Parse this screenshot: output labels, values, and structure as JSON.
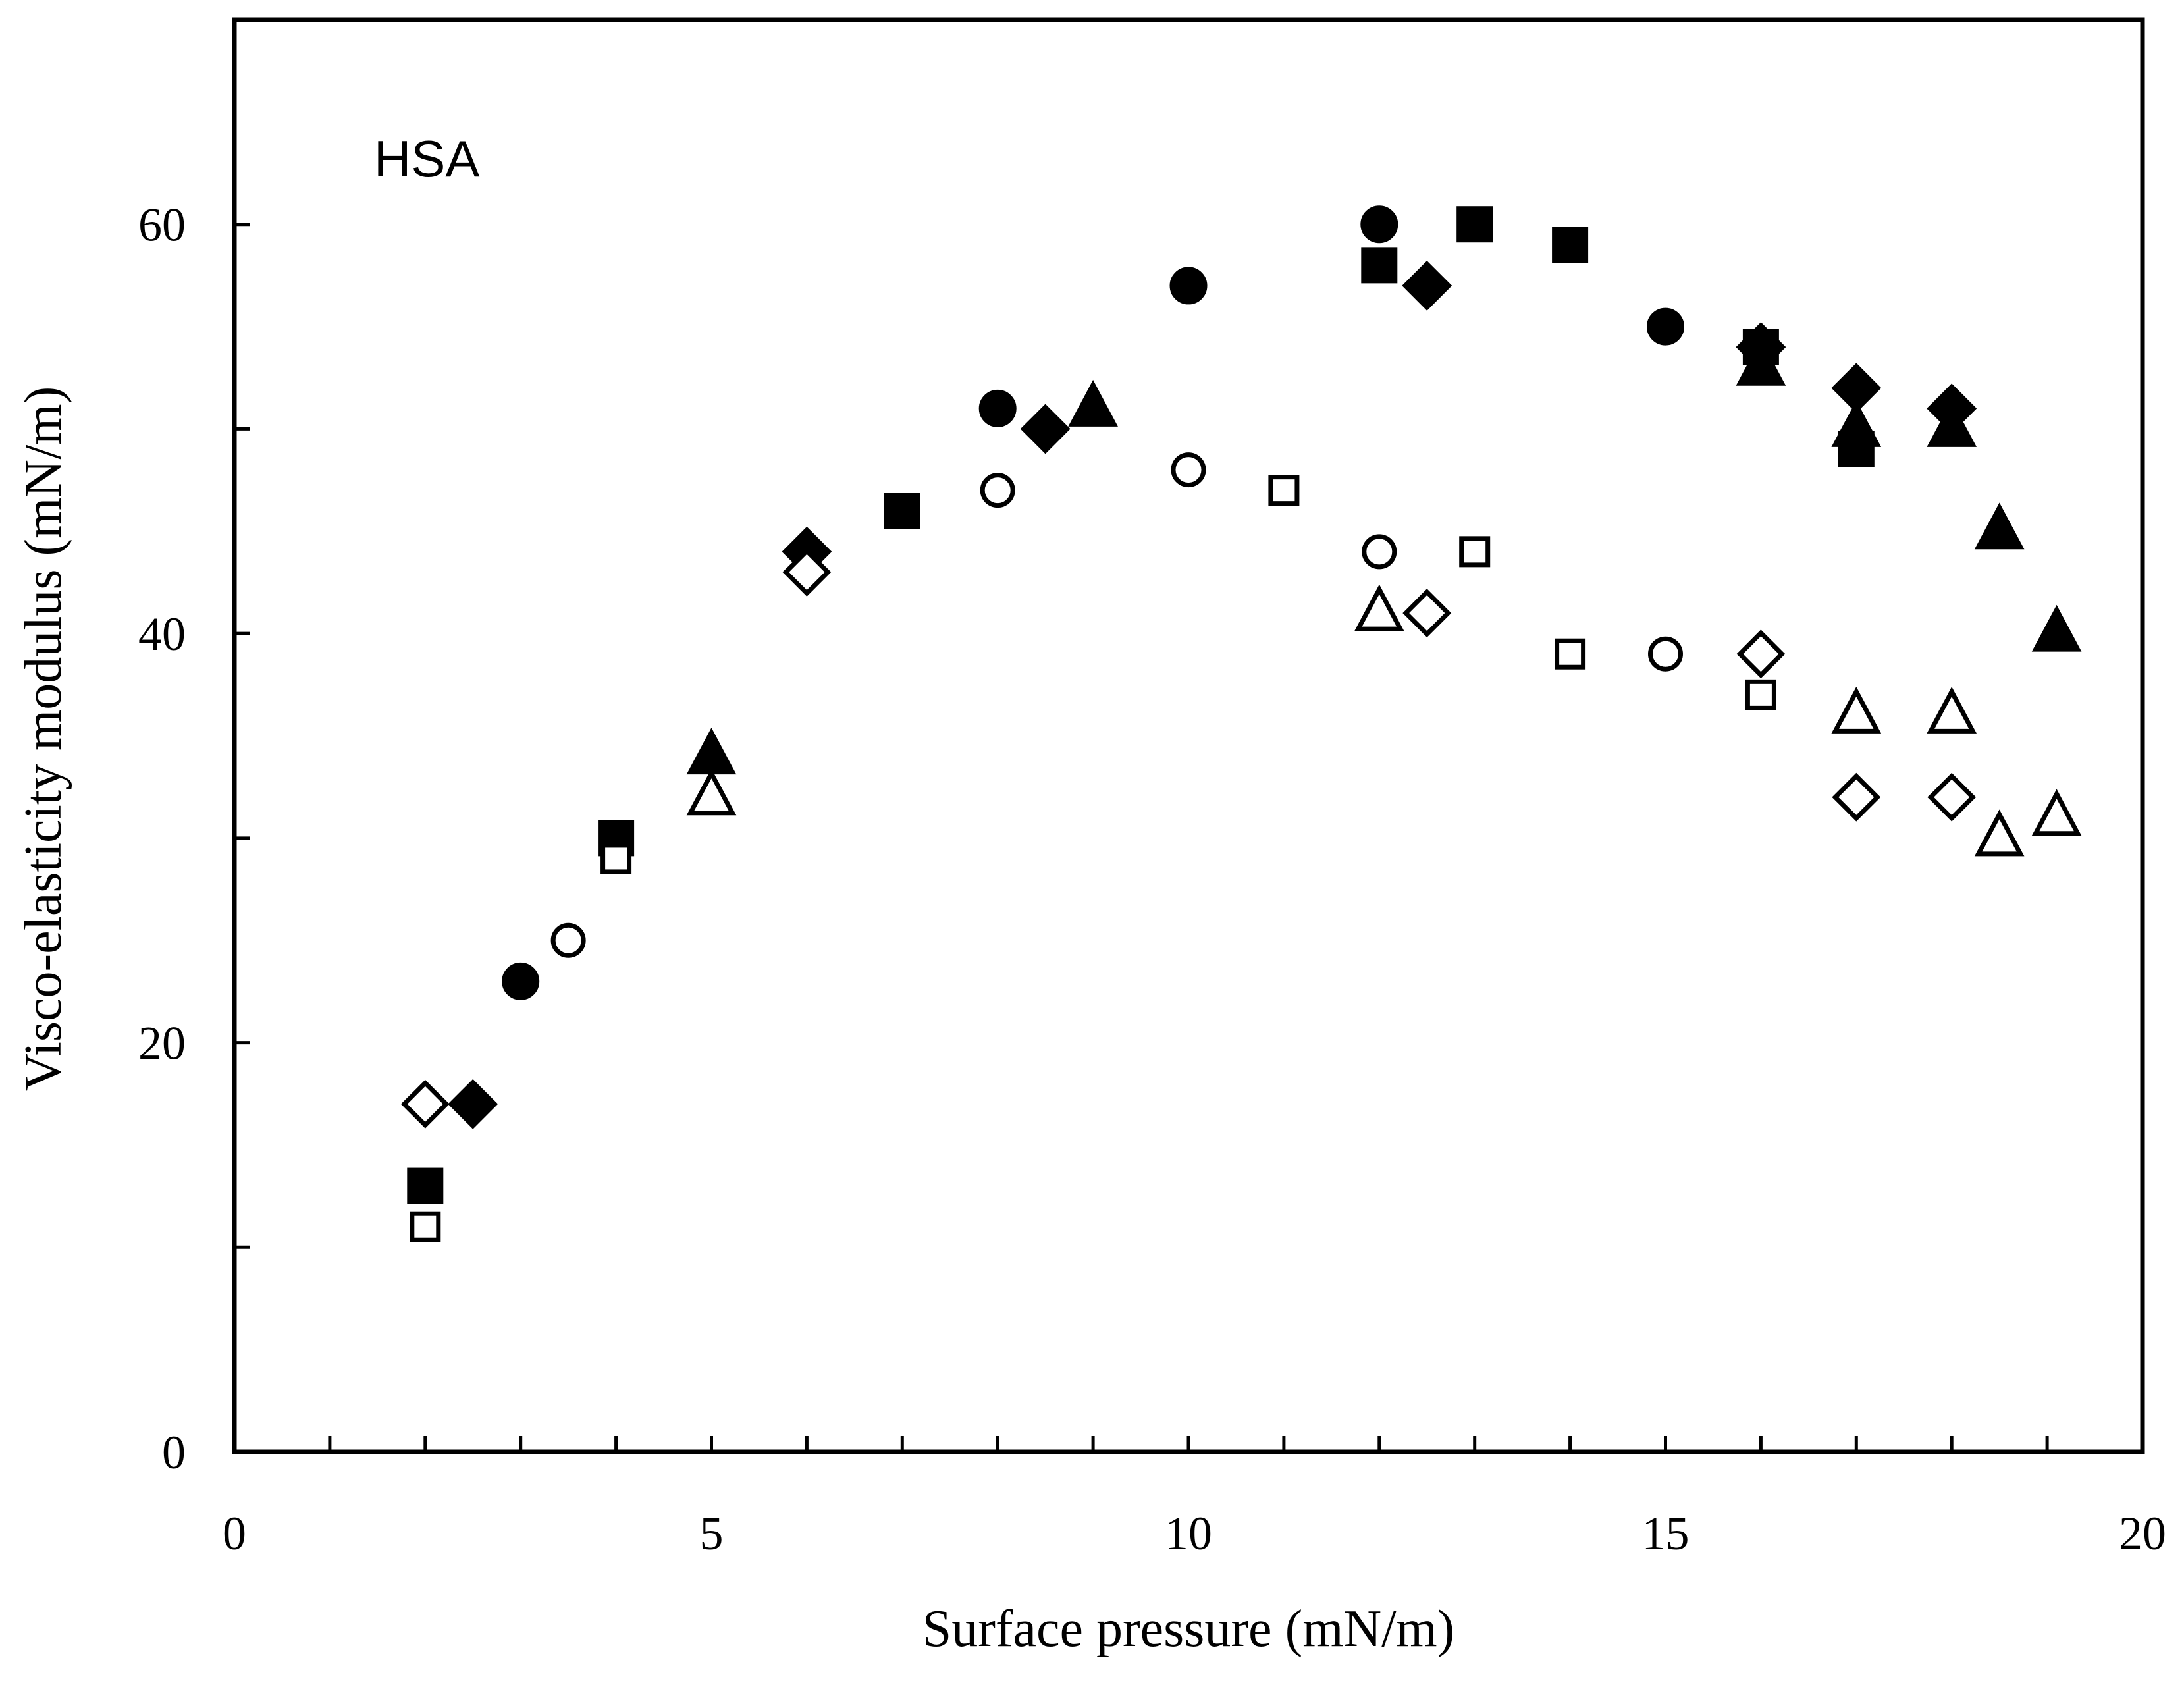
{
  "chart_data": {
    "type": "scatter",
    "title": "",
    "annotation": "HSA",
    "xlabel": "Surface pressure (mN/m)",
    "ylabel": "Visco-elasticity modulus (mN/m)",
    "xlim": [
      0,
      20
    ],
    "ylim": [
      0,
      70
    ],
    "x_ticks_major": [
      0,
      5,
      10,
      15,
      20
    ],
    "x_tick_labels": [
      "0",
      "5",
      "10",
      "15",
      "20"
    ],
    "x_ticks_minor": [
      1,
      2,
      3,
      4,
      6,
      7,
      8,
      9,
      11,
      12,
      13,
      14,
      16,
      17,
      18,
      19
    ],
    "y_ticks_major": [
      0,
      20,
      40,
      60
    ],
    "y_tick_labels": [
      "0",
      "20",
      "40",
      "60"
    ],
    "y_ticks_minor": [
      10,
      30,
      50
    ],
    "grid": false,
    "series": [
      {
        "name": "filled-circle",
        "marker": "circle",
        "filled": true,
        "points": [
          [
            3,
            23
          ],
          [
            8,
            51
          ],
          [
            10,
            57
          ],
          [
            12,
            60
          ],
          [
            15,
            55
          ]
        ]
      },
      {
        "name": "filled-square",
        "marker": "square",
        "filled": true,
        "points": [
          [
            2,
            13
          ],
          [
            4,
            30
          ],
          [
            7,
            46
          ],
          [
            12,
            58
          ],
          [
            13,
            60
          ],
          [
            14,
            59
          ],
          [
            16,
            54
          ],
          [
            17,
            49
          ]
        ]
      },
      {
        "name": "filled-diamond",
        "marker": "diamond",
        "filled": true,
        "points": [
          [
            2.5,
            17
          ],
          [
            6,
            44
          ],
          [
            8.5,
            50
          ],
          [
            12.5,
            57
          ],
          [
            16,
            54
          ],
          [
            17,
            52
          ],
          [
            18,
            51
          ]
        ]
      },
      {
        "name": "filled-triangle",
        "marker": "triangle",
        "filled": true,
        "points": [
          [
            5,
            34
          ],
          [
            9,
            51
          ],
          [
            16,
            53
          ],
          [
            17,
            50
          ],
          [
            18,
            50
          ],
          [
            18.5,
            45
          ],
          [
            19.1,
            40
          ]
        ]
      },
      {
        "name": "open-circle",
        "marker": "circle",
        "filled": false,
        "points": [
          [
            3.5,
            25
          ],
          [
            8,
            47
          ],
          [
            10,
            48
          ],
          [
            12,
            44
          ],
          [
            15,
            39
          ]
        ]
      },
      {
        "name": "open-square",
        "marker": "square",
        "filled": false,
        "points": [
          [
            2,
            11
          ],
          [
            4,
            29
          ],
          [
            11,
            47
          ],
          [
            13,
            44
          ],
          [
            14,
            39
          ],
          [
            16,
            37
          ]
        ]
      },
      {
        "name": "open-diamond",
        "marker": "diamond",
        "filled": false,
        "points": [
          [
            2,
            17
          ],
          [
            6,
            43
          ],
          [
            12.5,
            41
          ],
          [
            16,
            39
          ],
          [
            17,
            32
          ],
          [
            18,
            32
          ]
        ]
      },
      {
        "name": "open-triangle",
        "marker": "triangle",
        "filled": false,
        "points": [
          [
            5,
            32
          ],
          [
            12,
            41
          ],
          [
            17,
            36
          ],
          [
            18,
            36
          ],
          [
            18.5,
            30
          ],
          [
            19.1,
            31
          ]
        ]
      }
    ]
  }
}
